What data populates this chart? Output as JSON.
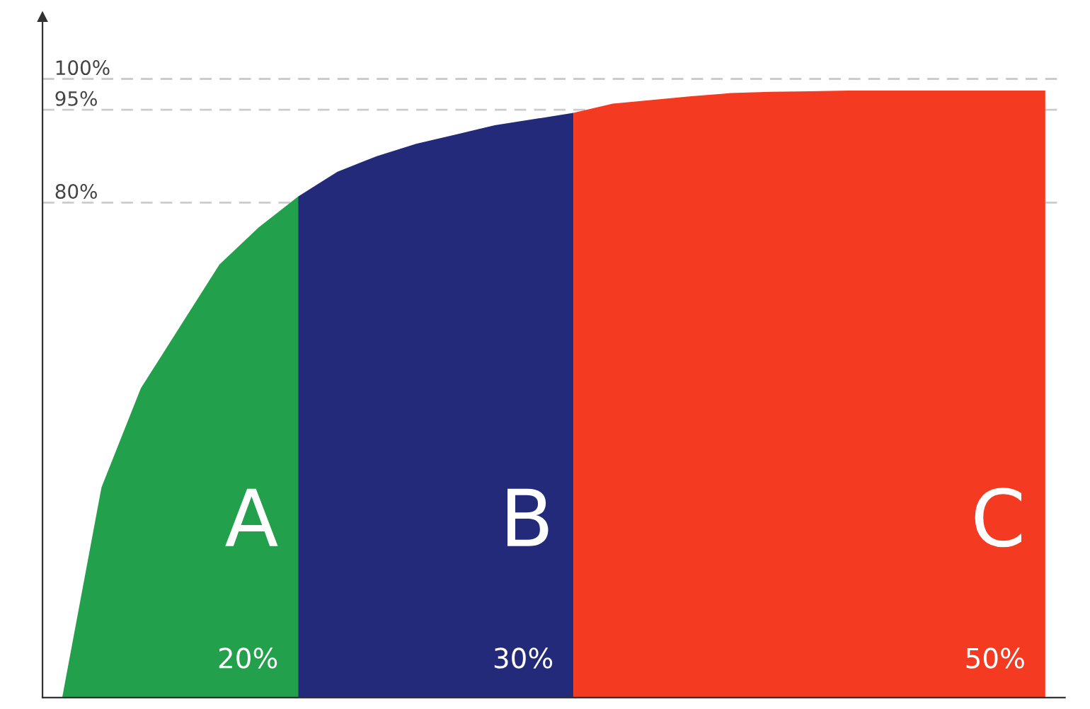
{
  "chart_data": {
    "type": "area",
    "categories": [
      null,
      null,
      null,
      null,
      null,
      null,
      null,
      null,
      null,
      null,
      null,
      null,
      null,
      null,
      null,
      null,
      null,
      null,
      null,
      null,
      null,
      null,
      null,
      null,
      null,
      null
    ],
    "ylim": [
      0,
      110
    ],
    "yticks": [
      {
        "value": 80,
        "label": "80%"
      },
      {
        "value": 95,
        "label": "95%"
      },
      {
        "value": 100,
        "label": "100%"
      }
    ],
    "grid": "y",
    "series": [
      {
        "name": "A",
        "color": "#22a04b",
        "values": [
          0,
          34,
          50,
          60,
          70,
          76,
          81,
          null,
          null,
          null,
          null,
          null,
          null,
          null,
          null,
          null,
          null,
          null,
          null,
          null,
          null,
          null,
          null,
          null,
          null,
          null
        ]
      },
      {
        "name": "B",
        "color": "#232a7a",
        "values": [
          null,
          null,
          null,
          null,
          null,
          null,
          81,
          85,
          87.5,
          89.5,
          91,
          92.5,
          93.5,
          94.5,
          null,
          null,
          null,
          null,
          null,
          null,
          null,
          null,
          null,
          null,
          null,
          null
        ]
      },
      {
        "name": "C",
        "color": "#f53a22",
        "values": [
          null,
          null,
          null,
          null,
          null,
          null,
          null,
          null,
          null,
          null,
          null,
          null,
          null,
          94.5,
          96,
          96.6,
          97.2,
          97.7,
          97.9,
          98,
          98.1,
          98.1,
          98.1,
          98.1,
          98.1,
          98.1
        ]
      }
    ],
    "annotations": [
      "20%",
      "30%",
      "50%"
    ]
  }
}
